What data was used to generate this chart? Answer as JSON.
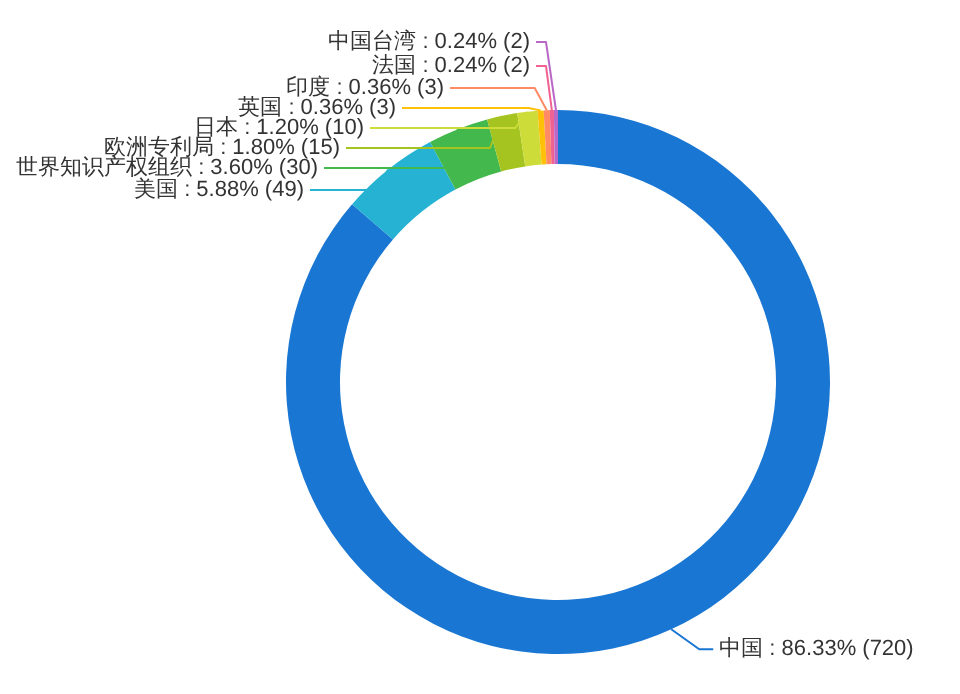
{
  "chart_data": {
    "type": "donut",
    "categories": [
      "中国",
      "美国",
      "世界知识产权组织",
      "欧洲专利局",
      "日本",
      "英国",
      "印度",
      "法国",
      "中国台湾"
    ],
    "values": [
      720,
      49,
      30,
      15,
      10,
      3,
      3,
      2,
      2
    ],
    "colors": [
      "#1976d2",
      "#26b3d3",
      "#43b84c",
      "#a5c420",
      "#cddc39",
      "#ffc107",
      "#ff8a65",
      "#f06292",
      "#ba68c8"
    ],
    "value_labels": [
      "86.33% (720)",
      "5.88% (49)",
      "3.60% (30)",
      "1.80% (15)",
      "1.20% (10)",
      "0.36% (3)",
      "0.36% (3)",
      "0.24% (2)",
      "0.24% (2)"
    ]
  }
}
